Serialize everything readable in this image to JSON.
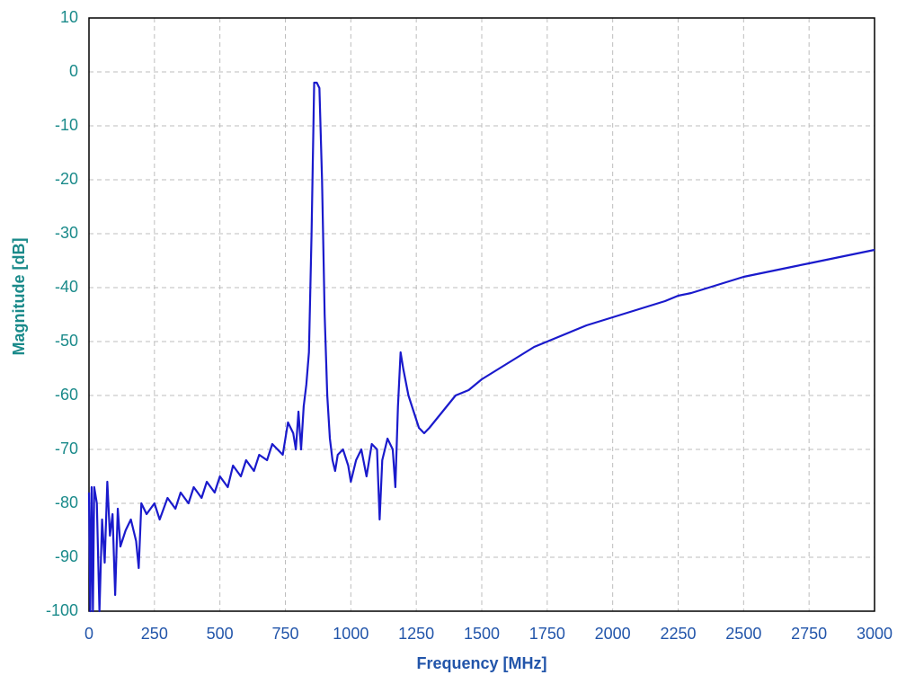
{
  "chart_data": {
    "type": "line",
    "x_label": "Frequency [MHz]",
    "y_label": "Magnitude [dB]",
    "xlim": [
      0,
      3000
    ],
    "ylim": [
      -100,
      10
    ],
    "xticks": [
      0,
      250,
      500,
      750,
      1000,
      1250,
      1500,
      1750,
      2000,
      2250,
      2500,
      2750,
      3000
    ],
    "yticks": [
      -100,
      -90,
      -80,
      -70,
      -60,
      -50,
      -40,
      -30,
      -20,
      -10,
      0,
      10
    ],
    "grid": true,
    "series": [
      {
        "color": "#1a1acc",
        "x": [
          0,
          5,
          10,
          15,
          20,
          30,
          40,
          50,
          60,
          70,
          80,
          90,
          100,
          110,
          120,
          140,
          160,
          180,
          190,
          200,
          220,
          250,
          270,
          300,
          330,
          350,
          380,
          400,
          430,
          450,
          480,
          500,
          530,
          550,
          580,
          600,
          630,
          650,
          680,
          700,
          720,
          740,
          760,
          780,
          790,
          800,
          810,
          820,
          830,
          840,
          850,
          860,
          870,
          880,
          890,
          900,
          910,
          920,
          930,
          940,
          950,
          970,
          990,
          1000,
          1020,
          1040,
          1060,
          1080,
          1100,
          1110,
          1120,
          1140,
          1160,
          1170,
          1180,
          1190,
          1200,
          1220,
          1240,
          1260,
          1280,
          1300,
          1350,
          1400,
          1450,
          1500,
          1600,
          1700,
          1750,
          1800,
          1900,
          2000,
          2100,
          2200,
          2250,
          2300,
          2400,
          2500,
          2600,
          2700,
          2750,
          2800,
          2900,
          3000
        ],
        "values": [
          -78,
          -100,
          -77,
          -100,
          -77,
          -80,
          -100,
          -83,
          -91,
          -76,
          -86,
          -82,
          -97,
          -81,
          -88,
          -85,
          -83,
          -87,
          -92,
          -80,
          -82,
          -80,
          -83,
          -79,
          -81,
          -78,
          -80,
          -77,
          -79,
          -76,
          -78,
          -75,
          -77,
          -73,
          -75,
          -72,
          -74,
          -71,
          -72,
          -69,
          -70,
          -71,
          -65,
          -67,
          -70,
          -63,
          -70,
          -62,
          -58,
          -52,
          -30,
          -2,
          -2,
          -3,
          -20,
          -45,
          -60,
          -68,
          -72,
          -74,
          -71,
          -70,
          -73,
          -76,
          -72,
          -70,
          -75,
          -69,
          -70,
          -83,
          -72,
          -68,
          -70,
          -77,
          -62,
          -52,
          -55,
          -60,
          -63,
          -66,
          -67,
          -66,
          -63,
          -60,
          -59,
          -57,
          -54,
          -51,
          -50,
          -49,
          -47,
          -45.5,
          -44,
          -42.5,
          -41.5,
          -41,
          -39.5,
          -38,
          -37,
          -36,
          -35.5,
          -35,
          -34,
          -33
        ]
      }
    ]
  }
}
